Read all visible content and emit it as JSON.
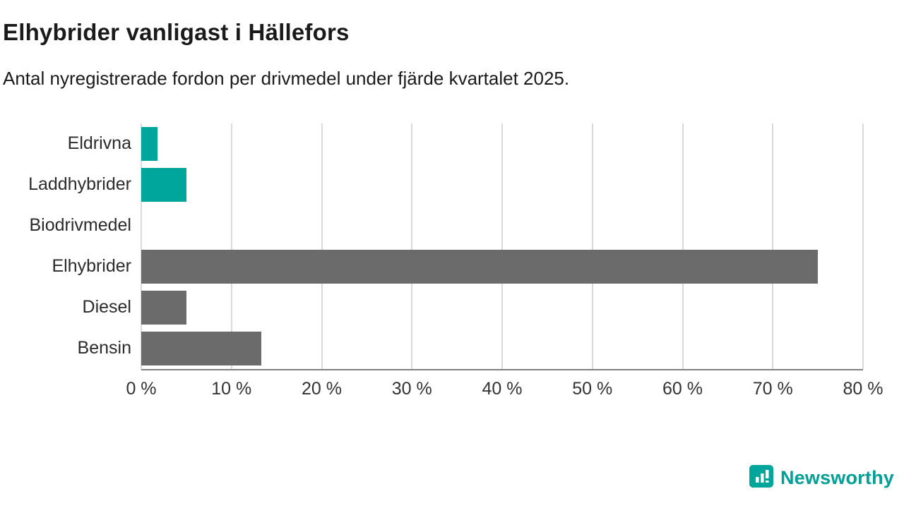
{
  "header": {
    "title": "Elhybrider vanligast i Hällefors",
    "subtitle": "Antal nyregistrerade fordon per drivmedel under fjärde kvartalet 2025."
  },
  "chart_data": {
    "type": "bar",
    "orientation": "horizontal",
    "title": "Elhybrider vanligast i Hällefors",
    "subtitle": "Antal nyregistrerade fordon per drivmedel under fjärde kvartalet 2025.",
    "categories": [
      "Eldrivna",
      "Laddhybrider",
      "Biodrivmedel",
      "Elhybrider",
      "Diesel",
      "Bensin"
    ],
    "values": [
      1.8,
      5,
      0,
      75,
      5,
      13.3
    ],
    "unit": "%",
    "bar_colors": [
      "#00a69c",
      "#00a69c",
      "#00a69c",
      "#6b6b6b",
      "#6b6b6b",
      "#6b6b6b"
    ],
    "xlabel": "",
    "ylabel": "",
    "xlim": [
      0,
      80
    ],
    "x_ticks": [
      0,
      10,
      20,
      30,
      40,
      50,
      60,
      70,
      80
    ],
    "x_tick_labels": [
      "0 %",
      "10 %",
      "20 %",
      "30 %",
      "40 %",
      "50 %",
      "60 %",
      "70 %",
      "80 %"
    ],
    "grid": "vertical",
    "gridline_color": "#d9d9d9",
    "axis_color": "#808080",
    "legend": "none"
  },
  "branding": {
    "logo_text": "Newsworthy",
    "logo_color": "#00a096"
  }
}
